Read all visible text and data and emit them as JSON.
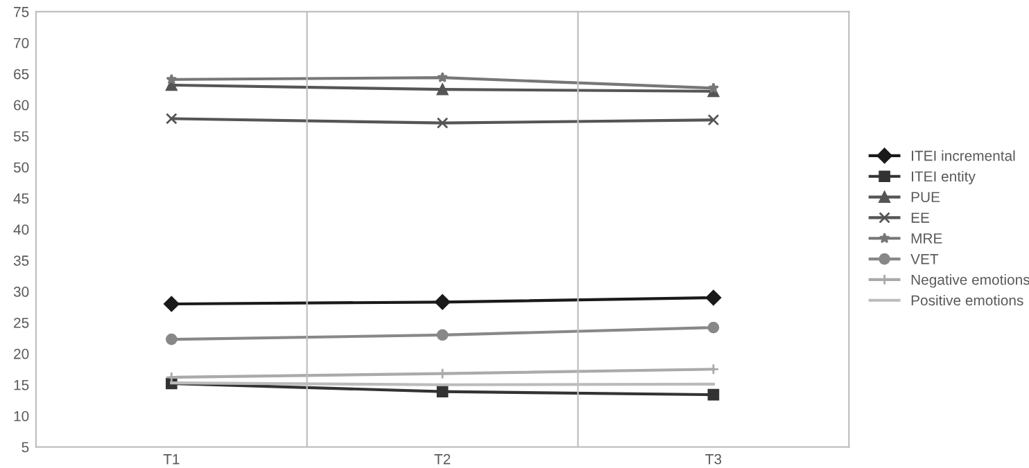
{
  "chart_data": {
    "type": "line",
    "categories": [
      "T1",
      "T2",
      "T3"
    ],
    "series": [
      {
        "name": "ITEI incremental",
        "color": "#1a1a1a",
        "marker": "diamond",
        "values": [
          28.0,
          28.3,
          29.0
        ]
      },
      {
        "name": "ITEI entity",
        "color": "#333333",
        "marker": "square",
        "values": [
          15.2,
          13.9,
          13.4
        ]
      },
      {
        "name": "PUE",
        "color": "#555555",
        "marker": "triangle",
        "values": [
          63.2,
          62.5,
          62.2
        ]
      },
      {
        "name": "EE",
        "color": "#555555",
        "marker": "cross",
        "values": [
          57.8,
          57.1,
          57.6
        ]
      },
      {
        "name": "MRE",
        "color": "#777777",
        "marker": "star",
        "values": [
          64.1,
          64.4,
          62.7
        ]
      },
      {
        "name": "VET",
        "color": "#888888",
        "marker": "circle",
        "values": [
          22.3,
          23.0,
          24.2
        ]
      },
      {
        "name": "Negative emotions",
        "color": "#aaaaaa",
        "marker": "plus",
        "values": [
          16.2,
          16.8,
          17.5
        ]
      },
      {
        "name": "Positive emotions",
        "color": "#bbbbbb",
        "marker": "none",
        "values": [
          15.3,
          15.0,
          15.1
        ]
      }
    ],
    "ylim": [
      5,
      75
    ],
    "yticks": [
      5,
      10,
      15,
      20,
      25,
      30,
      35,
      40,
      45,
      50,
      55,
      60,
      65,
      70,
      75
    ],
    "grid": "x",
    "legend": "right",
    "line_style": "solid"
  }
}
